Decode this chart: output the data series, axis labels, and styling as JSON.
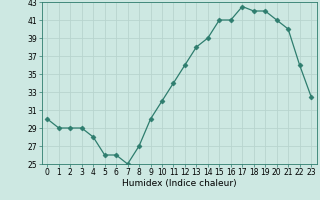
{
  "x": [
    0,
    1,
    2,
    3,
    4,
    5,
    6,
    7,
    8,
    9,
    10,
    11,
    12,
    13,
    14,
    15,
    16,
    17,
    18,
    19,
    20,
    21,
    22,
    23
  ],
  "y": [
    30,
    29,
    29,
    29,
    28,
    26,
    26,
    25,
    27,
    30,
    32,
    34,
    36,
    38,
    39,
    41,
    41,
    42.5,
    42,
    42,
    41,
    40,
    36,
    32.5
  ],
  "line_color": "#2e7d6e",
  "marker": "D",
  "marker_size": 2.5,
  "bg_color": "#cde8e2",
  "grid_color": "#b8d4ce",
  "xlabel": "Humidex (Indice chaleur)",
  "ylim": [
    25,
    43
  ],
  "yticks": [
    25,
    27,
    29,
    31,
    33,
    35,
    37,
    39,
    41,
    43
  ],
  "xticks": [
    0,
    1,
    2,
    3,
    4,
    5,
    6,
    7,
    8,
    9,
    10,
    11,
    12,
    13,
    14,
    15,
    16,
    17,
    18,
    19,
    20,
    21,
    22,
    23
  ],
  "xlabel_fontsize": 6.5,
  "tick_fontsize": 5.5
}
